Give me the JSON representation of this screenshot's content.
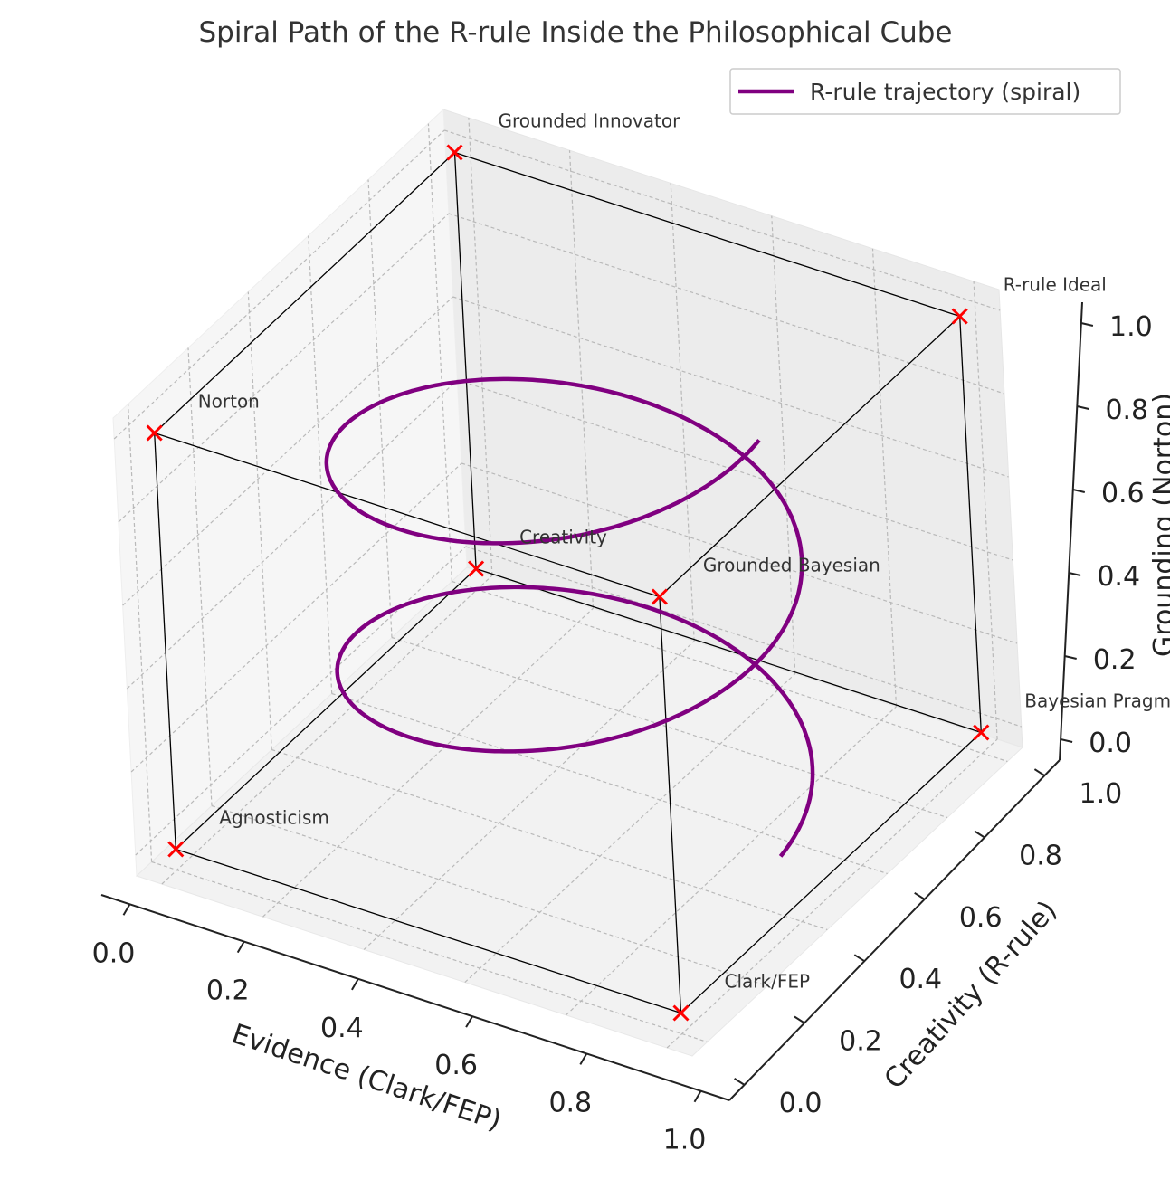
{
  "chart_data": {
    "type": "line3d",
    "title": "Spiral Path of the R-rule Inside the Philosophical Cube",
    "xlabel": "Evidence (Clark/FEP)",
    "ylabel": "Creativity (R-rule)",
    "zlabel": "Grounding (Norton)",
    "xlim": [
      -0.05,
      1.05
    ],
    "ylim": [
      -0.05,
      1.05
    ],
    "zlim": [
      -0.05,
      1.05
    ],
    "xticks": [
      "0.0",
      "0.2",
      "0.4",
      "0.6",
      "0.8",
      "1.0"
    ],
    "yticks": [
      "0.0",
      "0.2",
      "0.4",
      "0.6",
      "0.8",
      "1.0"
    ],
    "zticks": [
      "0.0",
      "0.2",
      "0.4",
      "0.6",
      "0.8",
      "1.0"
    ],
    "grid": true,
    "legend": {
      "position": "top-right",
      "entries": [
        "R-rule trajectory (spiral)"
      ]
    },
    "series": [
      {
        "name": "R-rule trajectory (spiral)",
        "color": "#800080",
        "kind": "spiral",
        "center": [
          0.5,
          0.5
        ],
        "radius": 0.4,
        "z_range": [
          0.0,
          1.0
        ],
        "turns": 2
      }
    ],
    "vertices": [
      {
        "label": "Agnosticism",
        "x": 0,
        "y": 0,
        "z": 0
      },
      {
        "label": "Clark/FEP",
        "x": 1,
        "y": 0,
        "z": 0
      },
      {
        "label": "Creativity",
        "x": 0,
        "y": 1,
        "z": 0
      },
      {
        "label": "Bayesian Pragmatist",
        "x": 1,
        "y": 1,
        "z": 0
      },
      {
        "label": "Norton",
        "x": 0,
        "y": 0,
        "z": 1
      },
      {
        "label": "Grounded Bayesian",
        "x": 1,
        "y": 0,
        "z": 1
      },
      {
        "label": "Grounded Innovator",
        "x": 0,
        "y": 1,
        "z": 1
      },
      {
        "label": "R-rule Ideal",
        "x": 1,
        "y": 1,
        "z": 1
      }
    ],
    "vertex_marker_color": "#ff0000",
    "cube_edge_color": "#000000"
  }
}
